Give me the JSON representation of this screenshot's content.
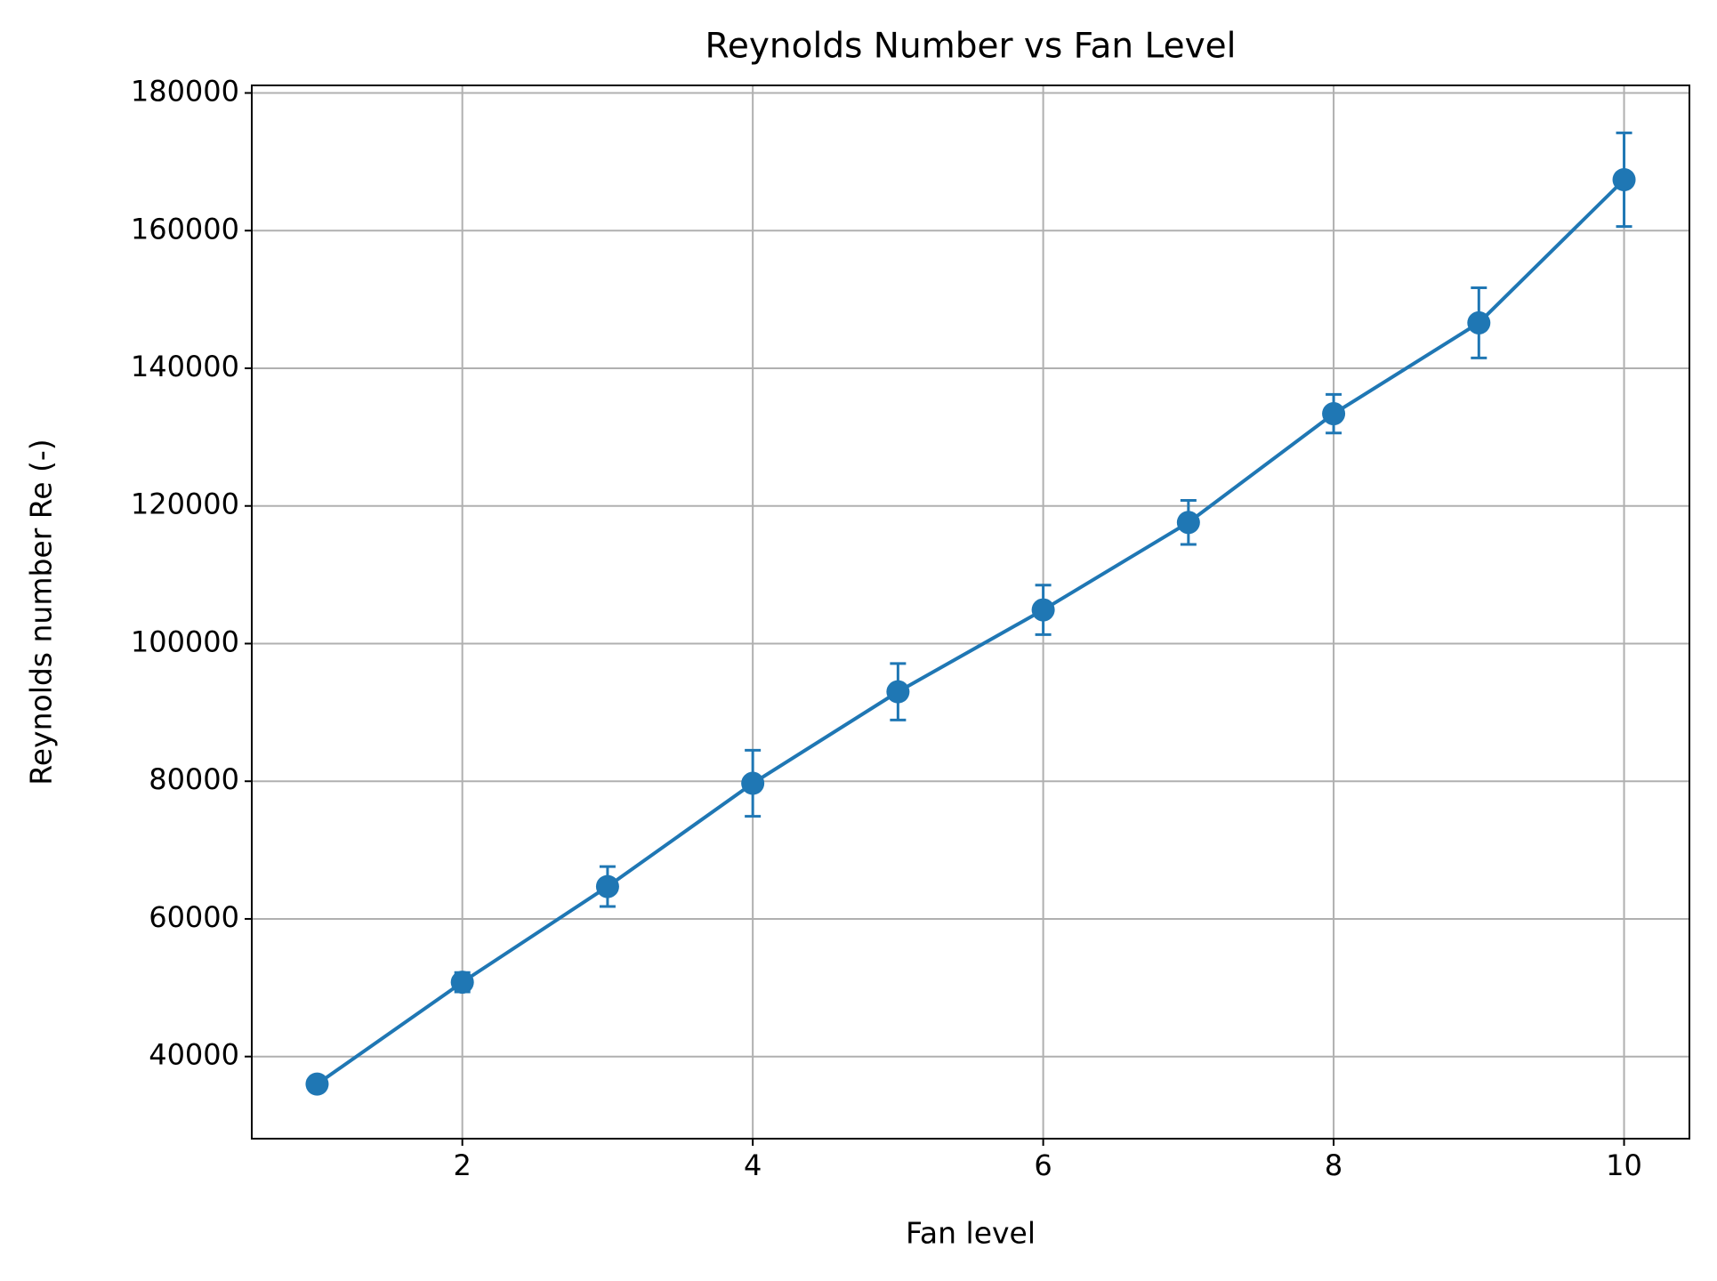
{
  "chart_data": {
    "type": "line",
    "title": "Reynolds Number vs Fan Level",
    "x_label": "Fan level",
    "y_label": "Reynolds number Re (-)",
    "xlim": [
      0.55,
      10.45
    ],
    "xticks": [
      2,
      4,
      6,
      8,
      10
    ],
    "ylim": [
      28070,
      181100
    ],
    "yticks": [
      40000,
      60000,
      80000,
      100000,
      120000,
      140000,
      160000,
      180000
    ],
    "grid": true,
    "series": [
      {
        "color": "#1f77b4",
        "x": [
          1,
          2,
          3,
          4,
          5,
          6,
          7,
          8,
          9,
          10
        ],
        "values": [
          36000,
          50800,
          64700,
          79700,
          93000,
          104900,
          117600,
          133400,
          146600,
          167400
        ],
        "errors": [
          1000,
          1400,
          2900,
          4800,
          4100,
          3600,
          3200,
          2800,
          5100,
          6800
        ]
      }
    ]
  }
}
